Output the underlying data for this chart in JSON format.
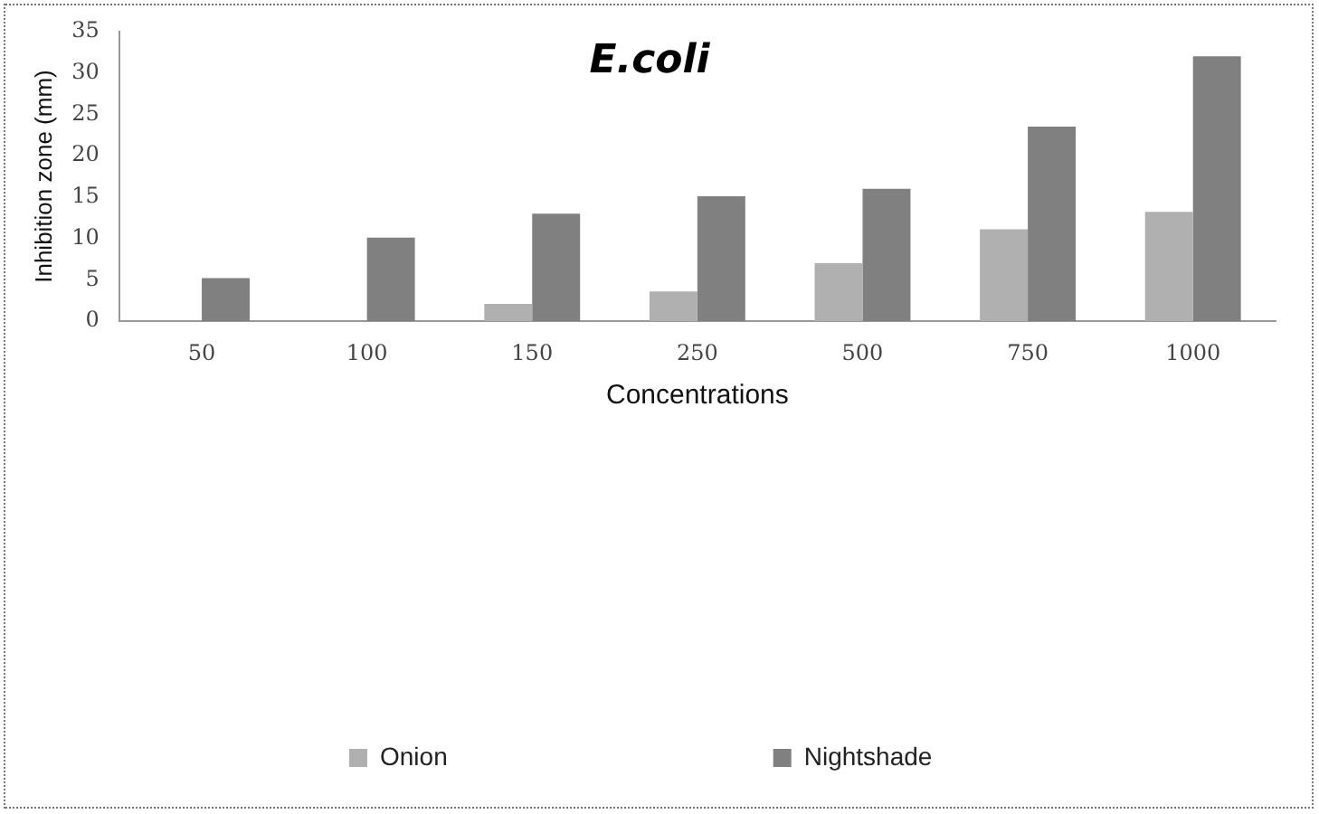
{
  "chart_data": {
    "type": "bar",
    "title": "E.coli",
    "xlabel": "Concentrations",
    "ylabel": "Inhibition zone (mm)",
    "categories": [
      "50",
      "100",
      "150",
      "250",
      "500",
      "750",
      "1000"
    ],
    "series": [
      {
        "name": "Onion",
        "color": "#b0b0b0",
        "values": [
          0,
          0,
          2.1,
          3.6,
          7,
          11.1,
          13.2
        ]
      },
      {
        "name": "Nightshade",
        "color": "#808080",
        "values": [
          5.2,
          10.1,
          13,
          15.1,
          16,
          23.5,
          32
        ]
      }
    ],
    "ylim": [
      0,
      35
    ],
    "yticks": [
      0,
      5,
      10,
      15,
      20,
      25,
      30,
      35
    ],
    "grid": false,
    "legend": "bottom"
  }
}
